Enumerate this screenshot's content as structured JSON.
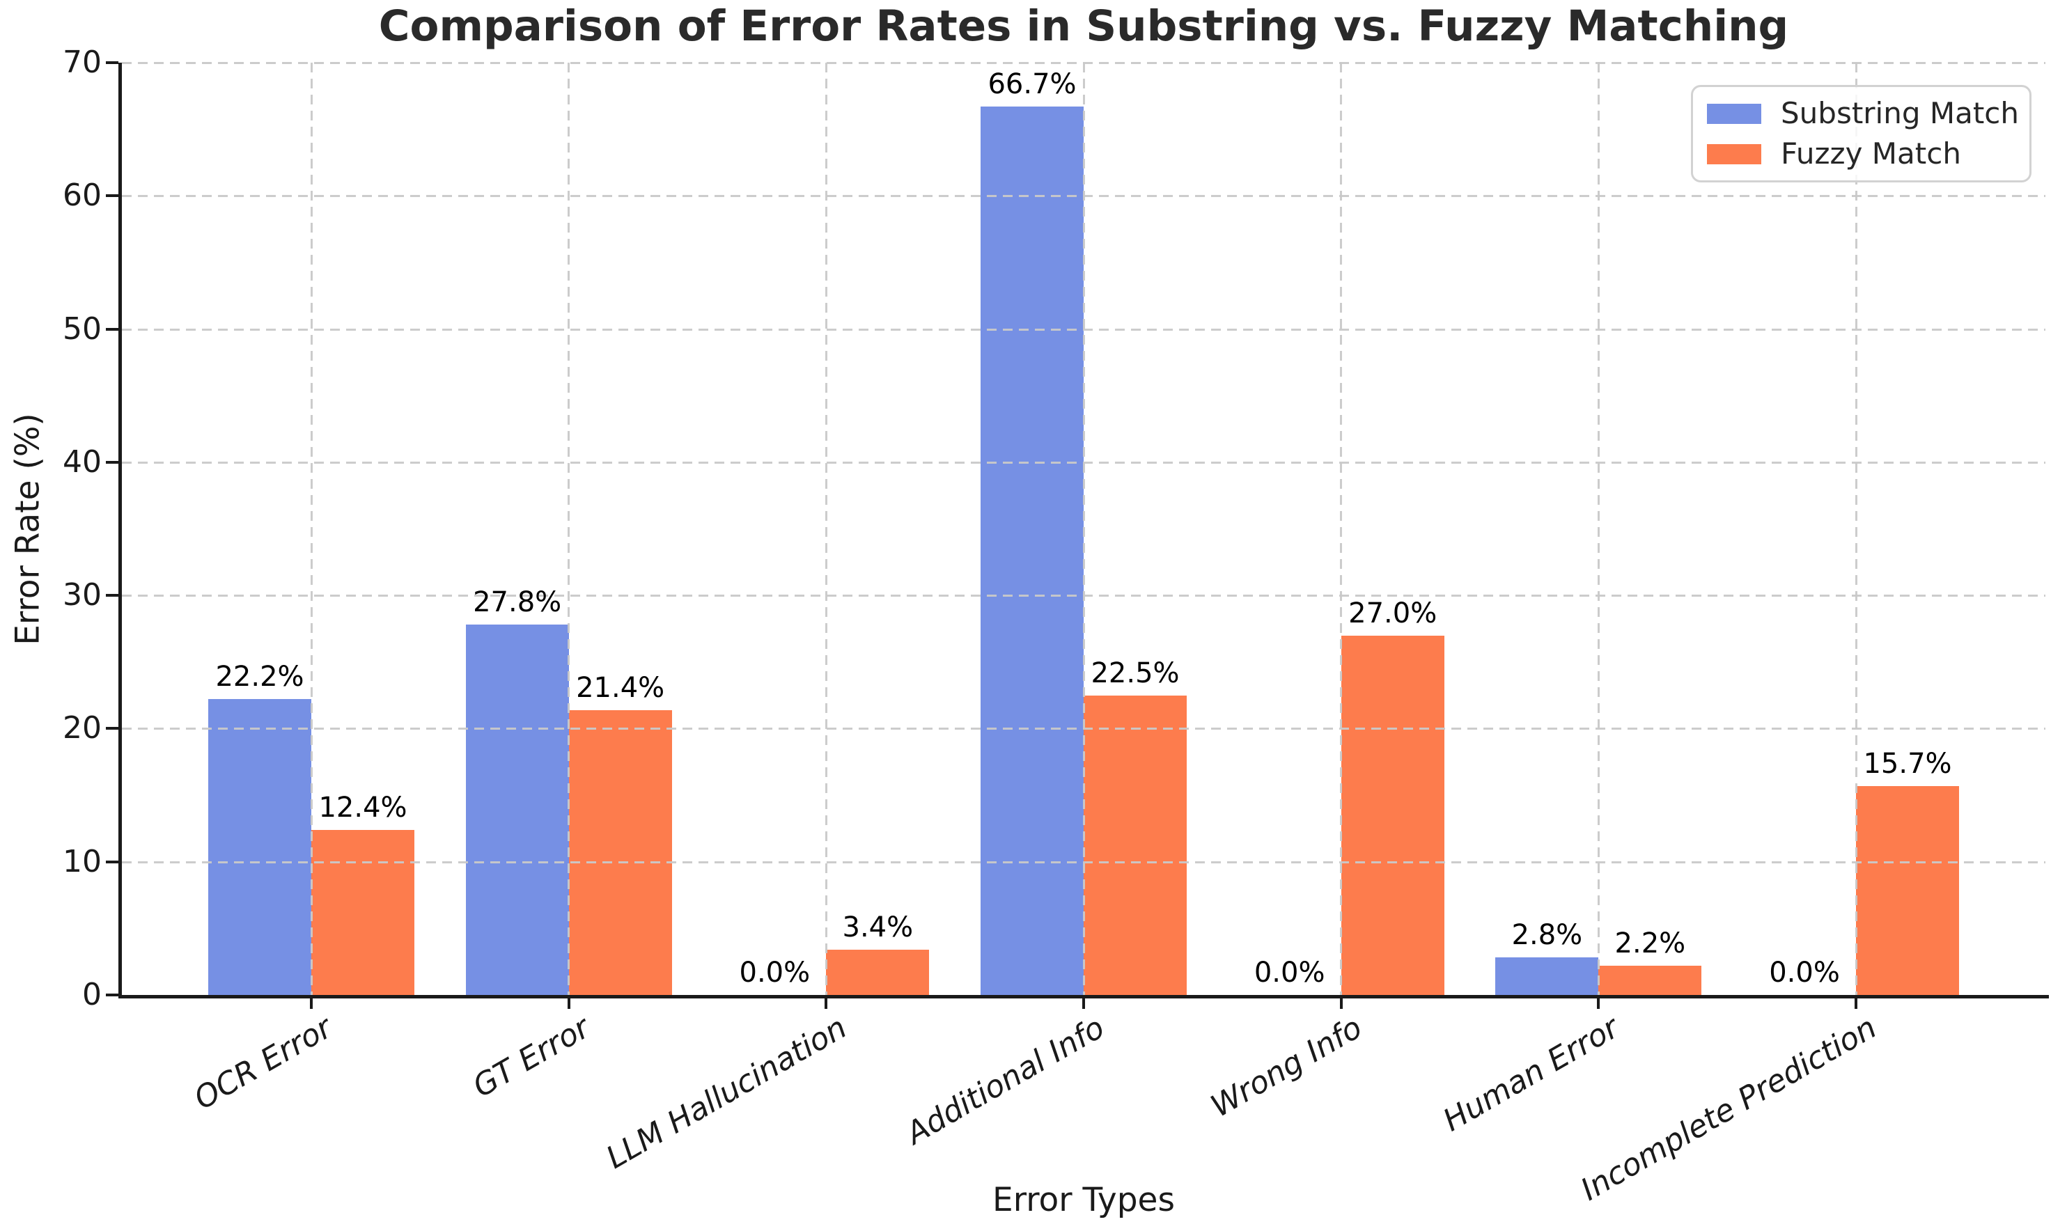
{
  "chart_data": {
    "type": "bar",
    "title": "Comparison of Error Rates in Substring vs. Fuzzy Matching",
    "xlabel": "Error Types",
    "ylabel": "Error Rate (%)",
    "categories": [
      "OCR Error",
      "GT Error",
      "LLM Hallucination",
      "Additional Info",
      "Wrong Info",
      "Human Error",
      "Incomplete Prediction"
    ],
    "series": [
      {
        "name": "Substring Match",
        "color": "#7690E4",
        "values": [
          22.2,
          27.8,
          0.0,
          66.7,
          0.0,
          2.8,
          0.0
        ]
      },
      {
        "name": "Fuzzy Match",
        "color": "#FD7C4D",
        "values": [
          12.4,
          21.4,
          3.4,
          22.5,
          27.0,
          2.2,
          15.7
        ]
      }
    ],
    "value_labels": [
      [
        "22.2%",
        "27.8%",
        "0.0%",
        "66.7%",
        "0.0%",
        "2.8%",
        "0.0%"
      ],
      [
        "12.4%",
        "21.4%",
        "3.4%",
        "22.5%",
        "27.0%",
        "2.2%",
        "15.7%"
      ]
    ],
    "ylim": [
      0,
      70
    ],
    "yticks": [
      0,
      10,
      20,
      30,
      40,
      50,
      60,
      70
    ],
    "grid": true,
    "grid_color": "#c9c9c9",
    "legend_position": "upper right",
    "legend_labels": [
      "Substring Match",
      "Fuzzy Match"
    ]
  }
}
